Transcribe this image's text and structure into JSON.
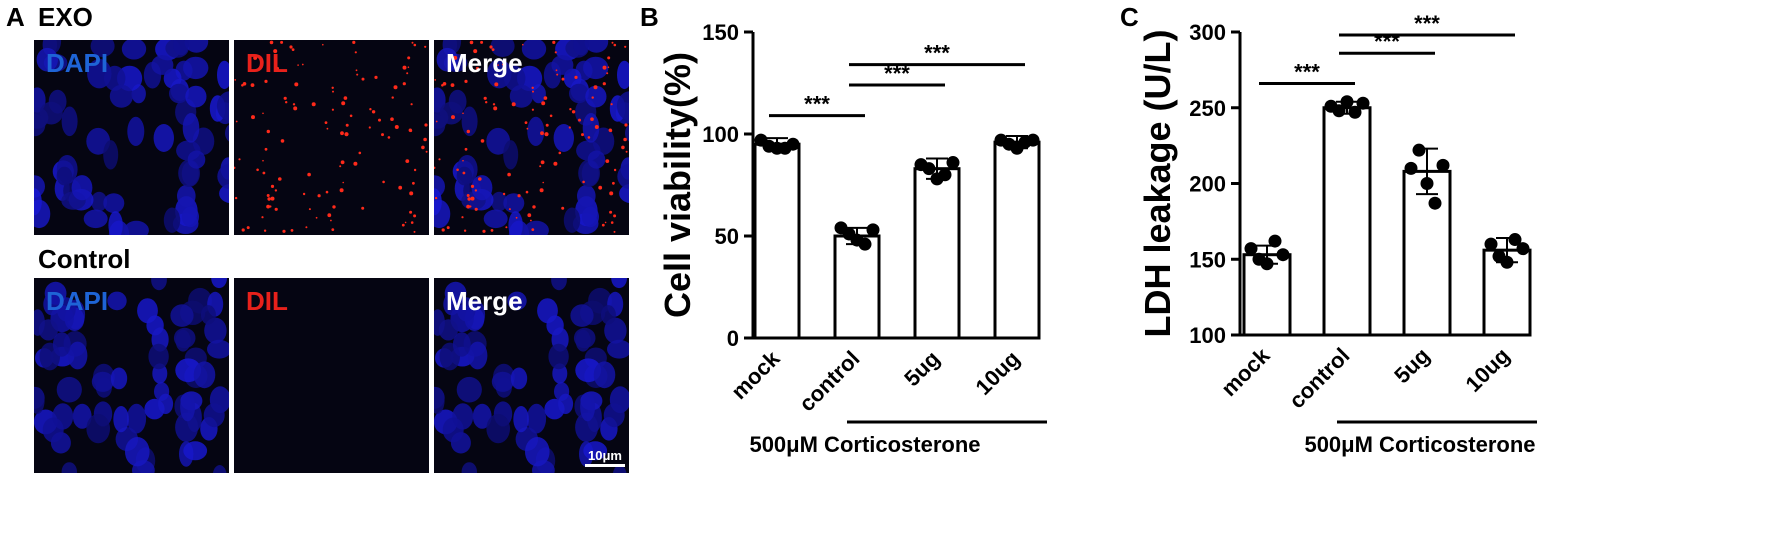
{
  "panelA": {
    "letter": "A",
    "rows": [
      {
        "title": "EXO",
        "tiles": [
          {
            "label": "DAPI",
            "channel": "blue",
            "color": "#1e64d6",
            "dil": false
          },
          {
            "label": "DIL",
            "channel": "red",
            "color": "#e8211b",
            "dil": true
          },
          {
            "label": "Merge",
            "channel": "merge",
            "color": "#ffffff",
            "dil": true
          }
        ]
      },
      {
        "title": "Control",
        "tiles": [
          {
            "label": "DAPI",
            "channel": "blue",
            "color": "#1e64d6",
            "dil": false
          },
          {
            "label": "DIL",
            "channel": "red",
            "color": "#e8211b",
            "dil": false
          },
          {
            "label": "Merge",
            "channel": "merge",
            "color": "#ffffff",
            "dil": false
          }
        ]
      }
    ],
    "scalebar": "10μm"
  },
  "chart_data": [
    {
      "panel": "B",
      "type": "bar",
      "ylabel": "Cell viability(%)",
      "ylim": [
        0,
        150
      ],
      "yticks": [
        0,
        50,
        100,
        150
      ],
      "categories": [
        "mock",
        "control",
        "5ug",
        "10ug"
      ],
      "values": [
        95,
        50,
        83,
        96
      ],
      "errors": [
        3,
        4,
        5,
        3
      ],
      "points": [
        [
          97,
          94,
          93,
          93,
          95
        ],
        [
          54,
          51,
          48,
          46,
          53
        ],
        [
          85,
          83,
          78,
          80,
          86
        ],
        [
          97,
          95,
          93,
          96,
          97
        ]
      ],
      "group_label": "500μM Corticosterone",
      "group_categories": [
        1,
        3
      ],
      "significance": [
        {
          "from": 0,
          "to": 1,
          "label": "***",
          "y": 109
        },
        {
          "from": 1,
          "to": 2,
          "label": "***",
          "y": 124
        },
        {
          "from": 1,
          "to": 3,
          "label": "***",
          "y": 134
        }
      ]
    },
    {
      "panel": "C",
      "type": "bar",
      "ylabel": "LDH leakage (U/L)",
      "ylim": [
        100,
        300
      ],
      "yticks": [
        100,
        150,
        200,
        250,
        300
      ],
      "categories": [
        "mock",
        "control",
        "5ug",
        "10ug"
      ],
      "values": [
        153,
        250,
        208,
        156
      ],
      "errors": [
        6,
        4,
        15,
        8
      ],
      "points": [
        [
          157,
          150,
          147,
          162,
          153
        ],
        [
          251,
          248,
          254,
          247,
          253
        ],
        [
          210,
          222,
          200,
          187,
          212
        ],
        [
          160,
          152,
          148,
          163,
          157
        ]
      ],
      "group_label": "500μM Corticosterone",
      "group_categories": [
        1,
        3
      ],
      "significance": [
        {
          "from": 0,
          "to": 1,
          "label": "***",
          "y": 266
        },
        {
          "from": 1,
          "to": 2,
          "label": "***",
          "y": 286
        },
        {
          "from": 1,
          "to": 3,
          "label": "***",
          "y": 298
        }
      ]
    }
  ]
}
